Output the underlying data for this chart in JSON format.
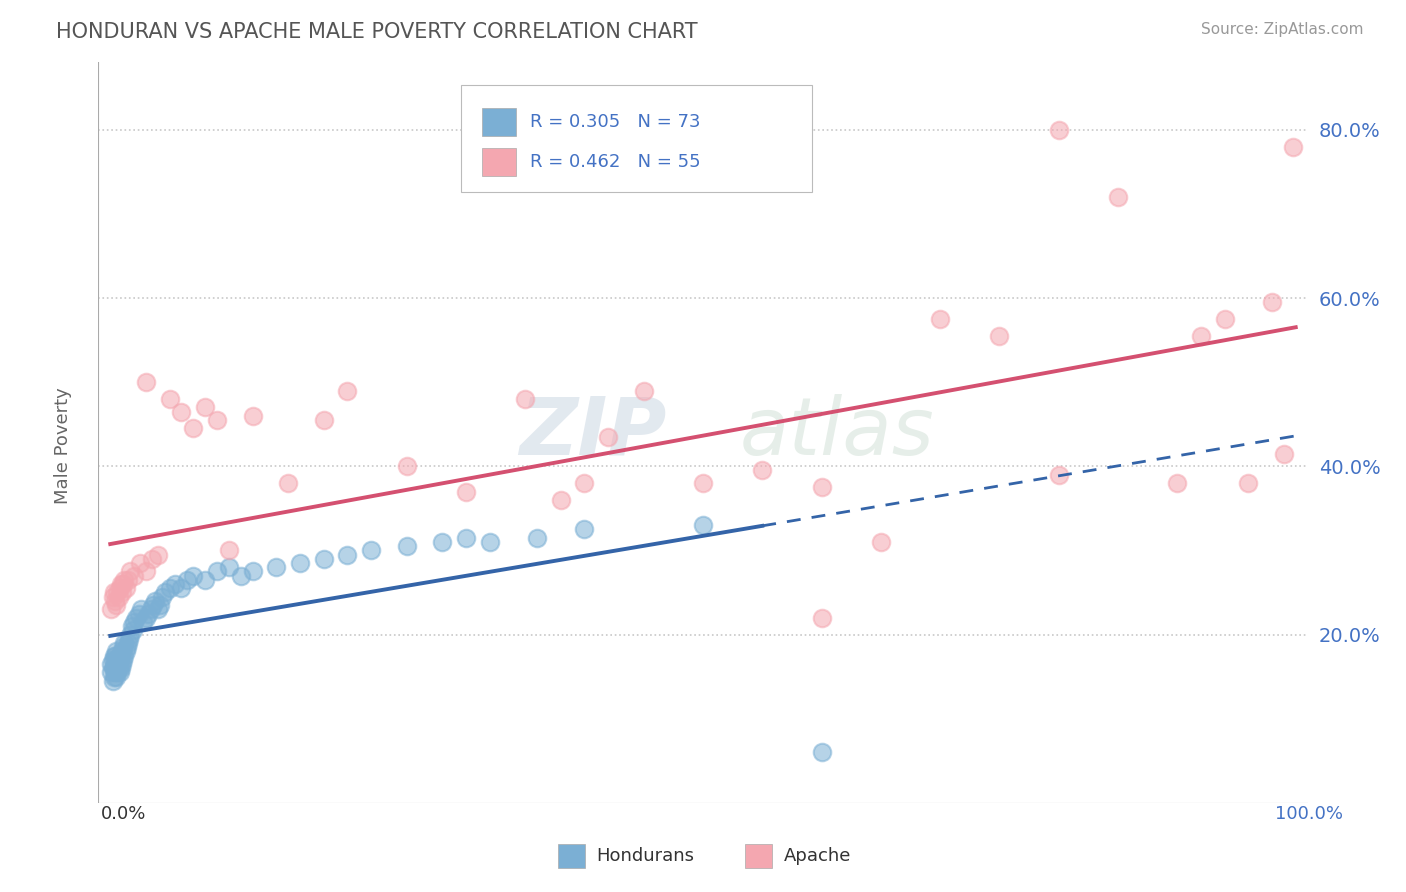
{
  "title": "HONDURAN VS APACHE MALE POVERTY CORRELATION CHART",
  "source": "Source: ZipAtlas.com",
  "ylabel": "Male Poverty",
  "watermark": "ZIPatlas",
  "legend_hondurans": "Hondurans",
  "legend_apache": "Apache",
  "R_hondurans": 0.305,
  "N_hondurans": 73,
  "R_apache": 0.462,
  "N_apache": 55,
  "blue_color": "#7bafd4",
  "pink_color": "#f4a7b0",
  "blue_line_color": "#3464a8",
  "pink_line_color": "#d45070",
  "grid_color": "#c8c8c8",
  "background_color": "#ffffff",
  "hondurans_x": [
    0.001,
    0.001,
    0.002,
    0.002,
    0.002,
    0.003,
    0.003,
    0.003,
    0.004,
    0.004,
    0.004,
    0.005,
    0.005,
    0.005,
    0.005,
    0.006,
    0.006,
    0.007,
    0.007,
    0.008,
    0.008,
    0.009,
    0.009,
    0.01,
    0.01,
    0.011,
    0.011,
    0.012,
    0.012,
    0.013,
    0.014,
    0.015,
    0.016,
    0.017,
    0.018,
    0.019,
    0.02,
    0.022,
    0.024,
    0.026,
    0.028,
    0.03,
    0.032,
    0.034,
    0.036,
    0.038,
    0.04,
    0.042,
    0.044,
    0.046,
    0.05,
    0.055,
    0.06,
    0.065,
    0.07,
    0.08,
    0.09,
    0.1,
    0.11,
    0.12,
    0.14,
    0.16,
    0.18,
    0.2,
    0.22,
    0.25,
    0.28,
    0.3,
    0.32,
    0.36,
    0.4,
    0.5,
    0.6
  ],
  "hondurans_y": [
    0.155,
    0.165,
    0.145,
    0.16,
    0.17,
    0.15,
    0.16,
    0.175,
    0.155,
    0.165,
    0.175,
    0.15,
    0.16,
    0.17,
    0.18,
    0.155,
    0.165,
    0.16,
    0.175,
    0.155,
    0.17,
    0.16,
    0.175,
    0.165,
    0.18,
    0.17,
    0.185,
    0.175,
    0.19,
    0.18,
    0.185,
    0.19,
    0.195,
    0.2,
    0.21,
    0.205,
    0.215,
    0.22,
    0.225,
    0.23,
    0.215,
    0.22,
    0.225,
    0.23,
    0.235,
    0.24,
    0.23,
    0.235,
    0.245,
    0.25,
    0.255,
    0.26,
    0.255,
    0.265,
    0.27,
    0.265,
    0.275,
    0.28,
    0.27,
    0.275,
    0.28,
    0.285,
    0.29,
    0.295,
    0.3,
    0.305,
    0.31,
    0.315,
    0.31,
    0.315,
    0.325,
    0.33,
    0.06
  ],
  "apache_x": [
    0.001,
    0.002,
    0.003,
    0.004,
    0.005,
    0.006,
    0.007,
    0.008,
    0.009,
    0.01,
    0.011,
    0.012,
    0.013,
    0.015,
    0.017,
    0.02,
    0.025,
    0.03,
    0.035,
    0.04,
    0.05,
    0.06,
    0.07,
    0.08,
    0.09,
    0.1,
    0.12,
    0.15,
    0.18,
    0.2,
    0.25,
    0.3,
    0.35,
    0.38,
    0.42,
    0.45,
    0.5,
    0.55,
    0.6,
    0.65,
    0.7,
    0.75,
    0.8,
    0.85,
    0.9,
    0.92,
    0.94,
    0.96,
    0.98,
    0.99,
    0.998,
    0.4,
    0.6,
    0.8,
    0.03
  ],
  "apache_y": [
    0.23,
    0.245,
    0.25,
    0.24,
    0.235,
    0.25,
    0.245,
    0.255,
    0.26,
    0.25,
    0.26,
    0.265,
    0.255,
    0.265,
    0.275,
    0.27,
    0.285,
    0.275,
    0.29,
    0.295,
    0.48,
    0.465,
    0.445,
    0.47,
    0.455,
    0.3,
    0.46,
    0.38,
    0.455,
    0.49,
    0.4,
    0.37,
    0.48,
    0.36,
    0.435,
    0.49,
    0.38,
    0.395,
    0.375,
    0.31,
    0.575,
    0.555,
    0.8,
    0.72,
    0.38,
    0.555,
    0.575,
    0.38,
    0.595,
    0.415,
    0.78,
    0.38,
    0.22,
    0.39,
    0.5
  ],
  "ylim": [
    0.0,
    0.88
  ],
  "xlim": [
    -0.01,
    1.01
  ],
  "ytick_vals": [
    0.2,
    0.4,
    0.6,
    0.8
  ],
  "ytick_labels": [
    "20.0%",
    "40.0%",
    "60.0%",
    "80.0%"
  ]
}
